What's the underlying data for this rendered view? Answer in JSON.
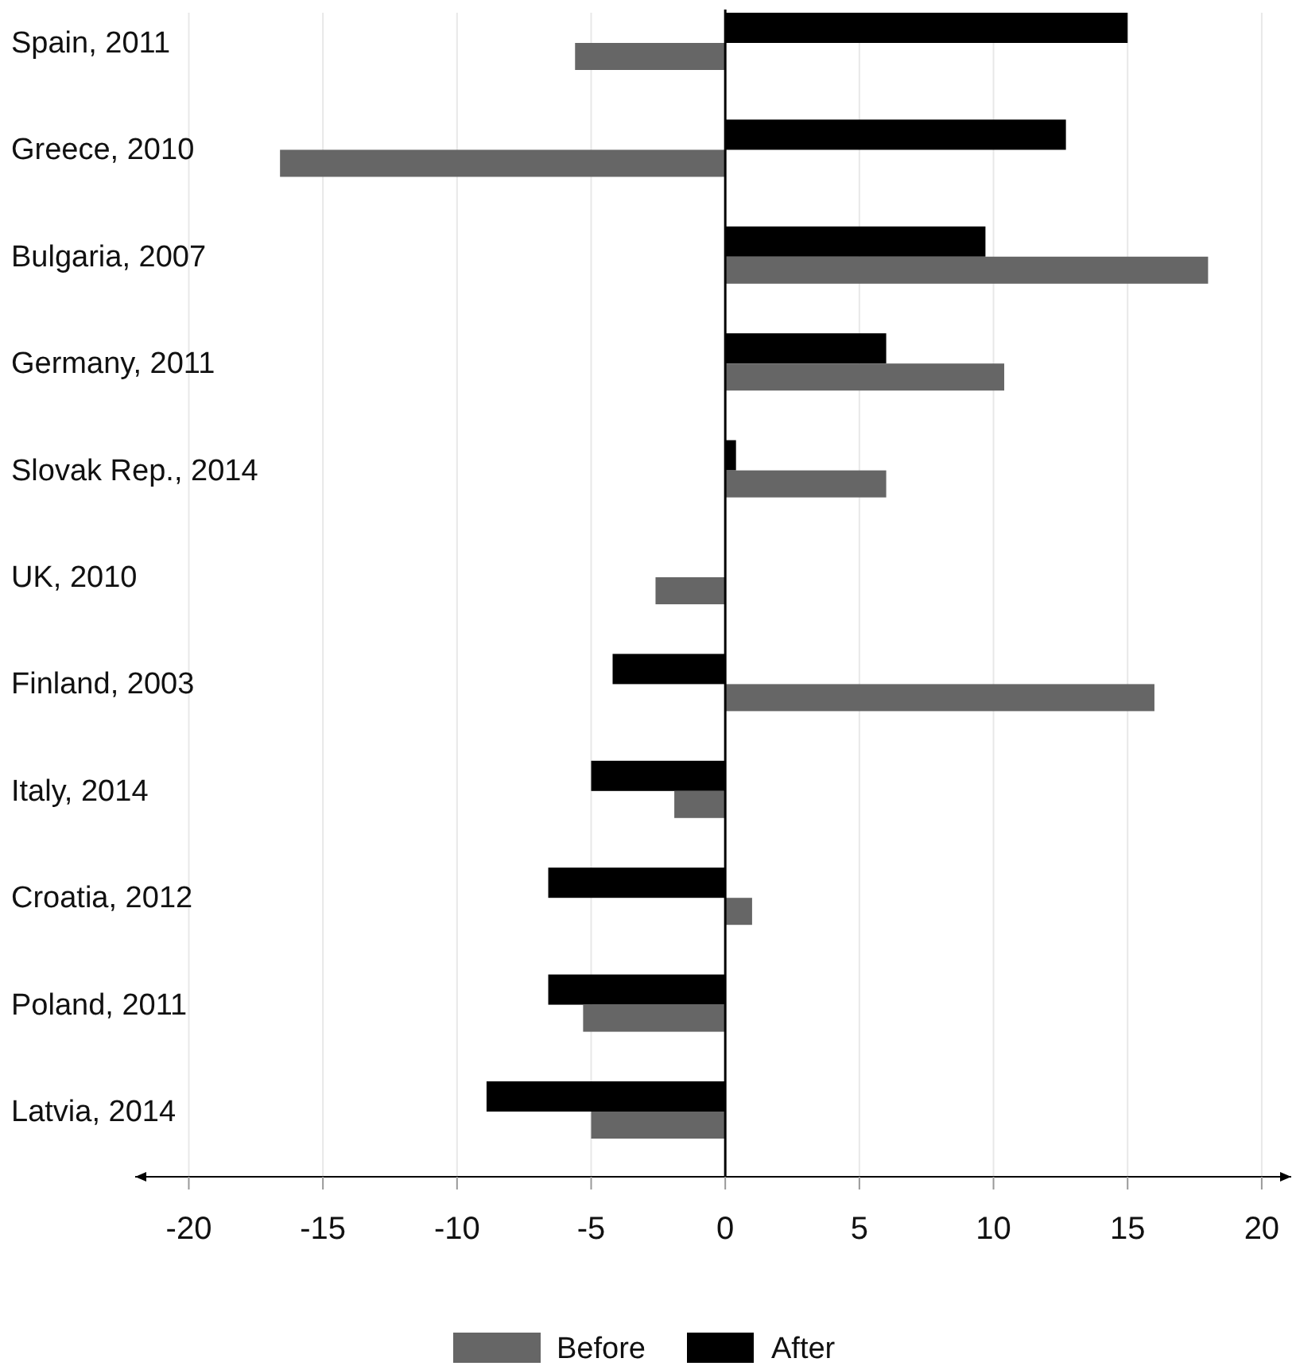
{
  "chart_data": {
    "type": "bar",
    "orientation": "horizontal",
    "categories": [
      "Spain, 2011",
      "Greece, 2010",
      "Bulgaria, 2007",
      "Germany, 2011",
      "Slovak Rep., 2014",
      "UK, 2010",
      "Finland, 2003",
      "Italy, 2014",
      "Croatia, 2012",
      "Poland, 2011",
      "Latvia, 2014"
    ],
    "series": [
      {
        "name": "After",
        "color": "#000000",
        "values": [
          15.0,
          12.7,
          9.7,
          6.0,
          0.4,
          null,
          -4.2,
          -5.0,
          -6.6,
          -6.6,
          -8.9
        ]
      },
      {
        "name": "Before",
        "color": "#666666",
        "values": [
          -5.6,
          -16.6,
          18.0,
          10.4,
          6.0,
          -2.6,
          16.0,
          -1.9,
          1.0,
          -5.3,
          -5.0
        ]
      }
    ],
    "xlim": [
      -22,
      21.1
    ],
    "xticks": [
      -20,
      -15,
      -10,
      -5,
      0,
      5,
      10,
      15,
      20
    ],
    "grid": "x",
    "legend": "bottom"
  }
}
